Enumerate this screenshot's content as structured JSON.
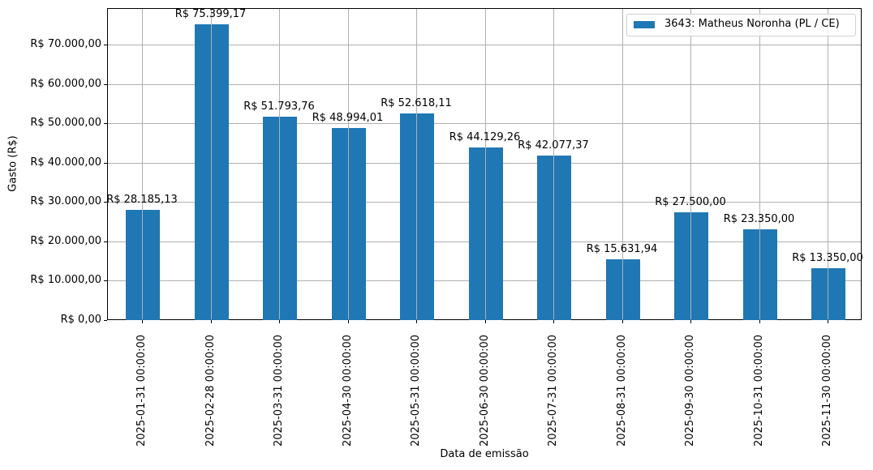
{
  "chart_data": {
    "type": "bar",
    "title": "",
    "xlabel": "Data de emissão",
    "ylabel": "Gasto (R$)",
    "ylim": [
      0,
      79000
    ],
    "grid": true,
    "legend_position": "upper right",
    "categories": [
      "2025-01-31 00:00:00",
      "2025-02-28 00:00:00",
      "2025-03-31 00:00:00",
      "2025-04-30 00:00:00",
      "2025-05-31 00:00:00",
      "2025-06-30 00:00:00",
      "2025-07-31 00:00:00",
      "2025-08-31 00:00:00",
      "2025-09-30 00:00:00",
      "2025-10-31 00:00:00",
      "2025-11-30 00:00:00"
    ],
    "series": [
      {
        "name": "3643: Matheus Noronha (PL / CE)",
        "color": "#1f77b4",
        "values": [
          28185.13,
          75399.17,
          51793.76,
          48994.01,
          52618.11,
          44129.26,
          42077.37,
          15631.94,
          27500.0,
          23350.0,
          13350.0
        ]
      }
    ],
    "data_labels": [
      "R$ 28.185,13",
      "R$ 75.399,17",
      "R$ 51.793,76",
      "R$ 48.994,01",
      "R$ 52.618,11",
      "R$ 44.129,26",
      "R$ 42.077,37",
      "R$ 15.631,94",
      "R$ 27.500,00",
      "R$ 23.350,00",
      "R$ 13.350,00"
    ],
    "yticks": [
      0,
      10000,
      20000,
      30000,
      40000,
      50000,
      60000,
      70000
    ],
    "ytick_labels": [
      "R$ 0,00",
      "R$ 10.000,00",
      "R$ 20.000,00",
      "R$ 30.000,00",
      "R$ 40.000,00",
      "R$ 50.000,00",
      "R$ 60.000,00",
      "R$ 70.000,00"
    ]
  }
}
